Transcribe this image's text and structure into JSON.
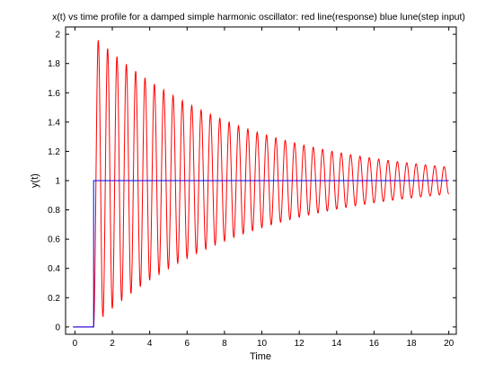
{
  "chart_data": {
    "type": "line",
    "title": "x(t) vs time profile for a damped simple harmonic oscillator: red line(response) blue lune(step input)",
    "xlabel": "Time",
    "ylabel": "y(t)",
    "xlim": [
      -0.5,
      20.4
    ],
    "ylim": [
      -0.05,
      2.05
    ],
    "x_ticks": [
      0,
      2,
      4,
      6,
      8,
      10,
      12,
      14,
      16,
      18,
      20
    ],
    "y_ticks": [
      0,
      0.2,
      0.4,
      0.6,
      0.8,
      1,
      1.2,
      1.4,
      1.6,
      1.8,
      2
    ],
    "x_tick_labels": [
      "0",
      "2",
      "4",
      "6",
      "8",
      "10",
      "12",
      "14",
      "16",
      "18",
      "20"
    ],
    "y_tick_labels": [
      "0",
      "0.2",
      "0.4",
      "0.6",
      "0.8",
      "1",
      "1.2",
      "1.4",
      "1.6",
      "1.8",
      "2"
    ],
    "grid": false,
    "series": [
      {
        "name": "response",
        "color": "#ff0000",
        "model": {
          "step_time": 1.0,
          "final_value": 1.0,
          "period": 0.5,
          "first_peak": 1.96,
          "damping_rate": 0.125,
          "t_end": 20
        }
      },
      {
        "name": "step input",
        "color": "#0000ff",
        "x": [
          -0.1,
          1.0,
          1.0,
          20.0
        ],
        "y": [
          0,
          0,
          1,
          1
        ]
      }
    ]
  }
}
